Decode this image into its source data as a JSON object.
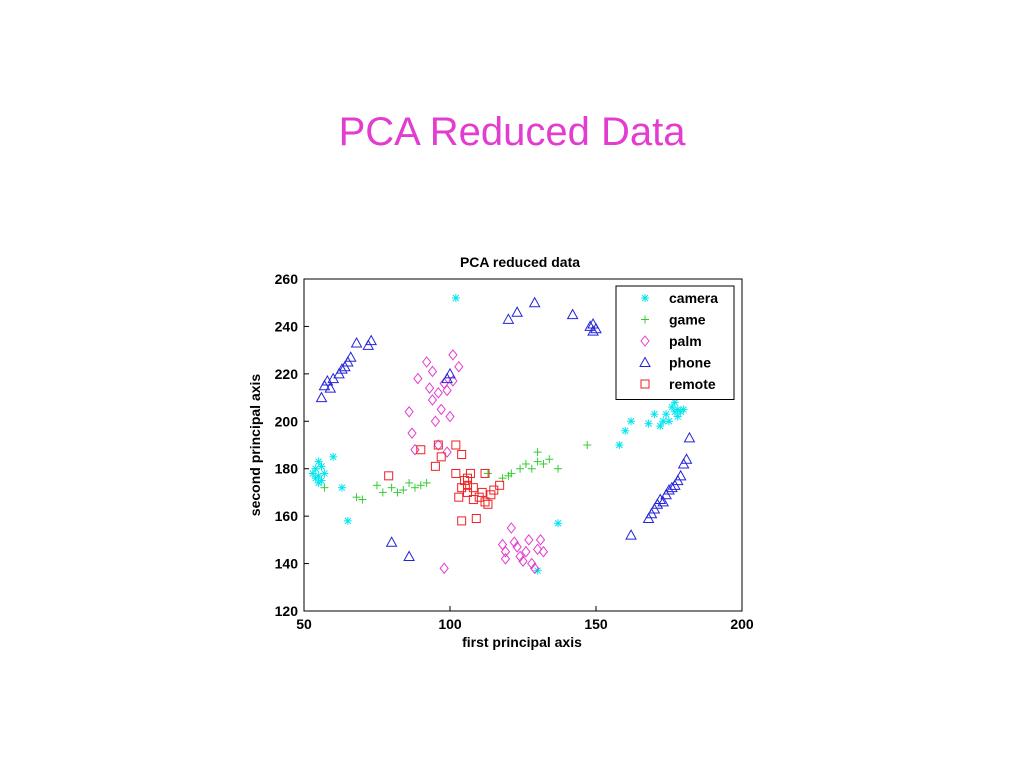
{
  "slide": {
    "title": "PCA Reduced Data",
    "title_color": "#e23dd0"
  },
  "chart_data": {
    "type": "scatter",
    "title": "PCA reduced data",
    "xlabel": "first principal axis",
    "ylabel": "second principal axis",
    "xlim": [
      50,
      200
    ],
    "ylim": [
      120,
      260
    ],
    "xticks": [
      50,
      100,
      150,
      200
    ],
    "yticks": [
      120,
      140,
      160,
      180,
      200,
      220,
      240,
      260
    ],
    "grid": false,
    "legend_position": "top-right",
    "series": [
      {
        "name": "camera",
        "marker": "star",
        "color": "#00e5ee",
        "points": [
          [
            53,
            178
          ],
          [
            54,
            176
          ],
          [
            55,
            174
          ],
          [
            54,
            180
          ],
          [
            55,
            183
          ],
          [
            56,
            181
          ],
          [
            55,
            177
          ],
          [
            56,
            175
          ],
          [
            57,
            178
          ],
          [
            60,
            185
          ],
          [
            63,
            172
          ],
          [
            65,
            158
          ],
          [
            102,
            252
          ],
          [
            137,
            157
          ],
          [
            130,
            137
          ],
          [
            158,
            190
          ],
          [
            160,
            196
          ],
          [
            162,
            200
          ],
          [
            168,
            199
          ],
          [
            170,
            203
          ],
          [
            172,
            198
          ],
          [
            173,
            200
          ],
          [
            174,
            203
          ],
          [
            175,
            200
          ],
          [
            176,
            206
          ],
          [
            177,
            208
          ],
          [
            177,
            204
          ],
          [
            178,
            205
          ],
          [
            179,
            204
          ],
          [
            180,
            205
          ],
          [
            178,
            202
          ]
        ]
      },
      {
        "name": "game",
        "marker": "plus",
        "color": "#33cc33",
        "points": [
          [
            57,
            172
          ],
          [
            68,
            168
          ],
          [
            70,
            167
          ],
          [
            75,
            173
          ],
          [
            77,
            170
          ],
          [
            80,
            172
          ],
          [
            82,
            170
          ],
          [
            84,
            171
          ],
          [
            86,
            174
          ],
          [
            88,
            172
          ],
          [
            90,
            173
          ],
          [
            92,
            174
          ],
          [
            113,
            178
          ],
          [
            118,
            176
          ],
          [
            120,
            177
          ],
          [
            121,
            178
          ],
          [
            124,
            180
          ],
          [
            126,
            182
          ],
          [
            128,
            180
          ],
          [
            130,
            187
          ],
          [
            130,
            183
          ],
          [
            132,
            182
          ],
          [
            134,
            184
          ],
          [
            137,
            180
          ],
          [
            147,
            190
          ]
        ]
      },
      {
        "name": "palm",
        "marker": "diamond",
        "color": "#e23dd0",
        "points": [
          [
            86,
            204
          ],
          [
            87,
            195
          ],
          [
            88,
            188
          ],
          [
            89,
            218
          ],
          [
            92,
            225
          ],
          [
            93,
            214
          ],
          [
            94,
            221
          ],
          [
            94,
            209
          ],
          [
            95,
            200
          ],
          [
            96,
            212
          ],
          [
            97,
            205
          ],
          [
            98,
            216
          ],
          [
            99,
            213
          ],
          [
            96,
            190
          ],
          [
            99,
            187
          ],
          [
            100,
            202
          ],
          [
            101,
            228
          ],
          [
            101,
            217
          ],
          [
            103,
            223
          ],
          [
            98,
            138
          ],
          [
            118,
            148
          ],
          [
            119,
            145
          ],
          [
            121,
            155
          ],
          [
            122,
            149
          ],
          [
            123,
            147
          ],
          [
            124,
            143
          ],
          [
            125,
            141
          ],
          [
            126,
            145
          ],
          [
            127,
            150
          ],
          [
            128,
            140
          ],
          [
            129,
            138
          ],
          [
            130,
            146
          ],
          [
            131,
            150
          ],
          [
            132,
            145
          ],
          [
            119,
            142
          ]
        ]
      },
      {
        "name": "phone",
        "marker": "triangle",
        "color": "#2424d6",
        "points": [
          [
            56,
            210
          ],
          [
            57,
            215
          ],
          [
            58,
            217
          ],
          [
            59,
            214
          ],
          [
            60,
            218
          ],
          [
            62,
            220
          ],
          [
            63,
            222
          ],
          [
            64,
            223
          ],
          [
            65,
            225
          ],
          [
            66,
            227
          ],
          [
            68,
            233
          ],
          [
            72,
            232
          ],
          [
            73,
            234
          ],
          [
            99,
            218
          ],
          [
            100,
            220
          ],
          [
            80,
            149
          ],
          [
            86,
            143
          ],
          [
            120,
            243
          ],
          [
            123,
            246
          ],
          [
            129,
            250
          ],
          [
            142,
            245
          ],
          [
            148,
            240
          ],
          [
            149,
            241
          ],
          [
            150,
            239
          ],
          [
            149,
            238
          ],
          [
            162,
            152
          ],
          [
            168,
            159
          ],
          [
            169,
            161
          ],
          [
            170,
            163
          ],
          [
            171,
            165
          ],
          [
            172,
            167
          ],
          [
            173,
            166
          ],
          [
            174,
            169
          ],
          [
            175,
            171
          ],
          [
            176,
            172
          ],
          [
            177,
            173
          ],
          [
            178,
            175
          ],
          [
            179,
            177
          ],
          [
            180,
            182
          ],
          [
            181,
            184
          ],
          [
            182,
            193
          ]
        ]
      },
      {
        "name": "remote",
        "marker": "square",
        "color": "#ee2222",
        "points": [
          [
            79,
            177
          ],
          [
            90,
            188
          ],
          [
            95,
            181
          ],
          [
            96,
            190
          ],
          [
            97,
            185
          ],
          [
            102,
            190
          ],
          [
            102,
            178
          ],
          [
            103,
            168
          ],
          [
            104,
            172
          ],
          [
            104,
            158
          ],
          [
            105,
            175
          ],
          [
            106,
            173
          ],
          [
            106,
            170
          ],
          [
            107,
            178
          ],
          [
            108,
            172
          ],
          [
            108,
            167
          ],
          [
            109,
            159
          ],
          [
            110,
            168
          ],
          [
            111,
            170
          ],
          [
            112,
            166
          ],
          [
            112,
            178
          ],
          [
            113,
            165
          ],
          [
            114,
            169
          ],
          [
            115,
            171
          ],
          [
            117,
            173
          ],
          [
            104,
            186
          ],
          [
            106,
            176
          ]
        ]
      }
    ]
  }
}
